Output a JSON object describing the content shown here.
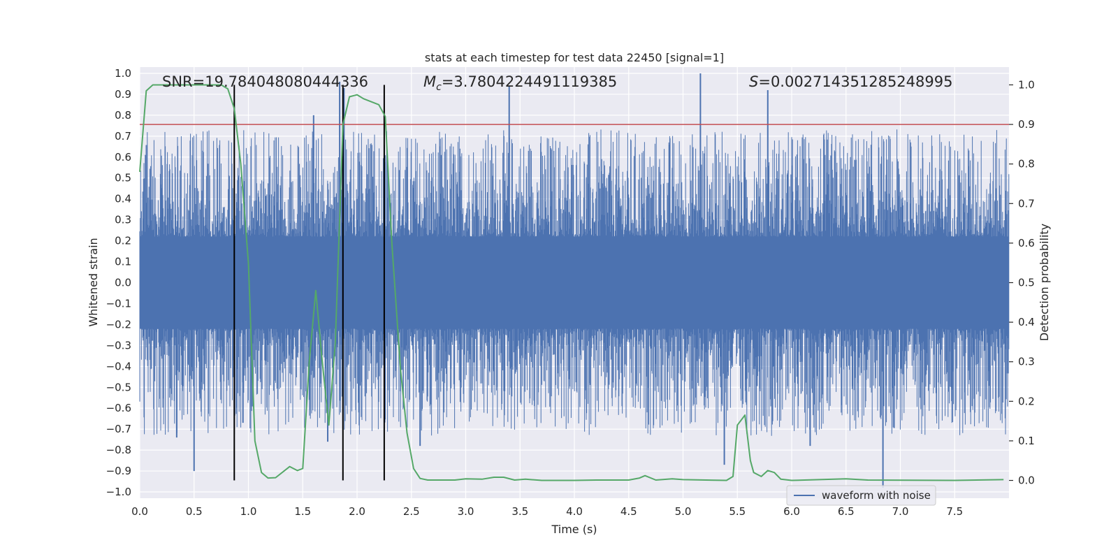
{
  "chart_data": {
    "type": "line",
    "title": "stats at each timestep for test data 22450 [signal=1]",
    "xlabel": "Time (s)",
    "ylabel_left": "Whitened strain",
    "ylabel_right": "Detection probability",
    "xlim": [
      0.0,
      8.0
    ],
    "ylim_left": [
      -1.03,
      1.03
    ],
    "ylim_right": [
      -0.045,
      1.045
    ],
    "x_ticks": [
      0.0,
      0.5,
      1.0,
      1.5,
      2.0,
      2.5,
      3.0,
      3.5,
      4.0,
      4.5,
      5.0,
      5.5,
      6.0,
      6.5,
      7.0,
      7.5
    ],
    "x_tick_labels": [
      "0.0",
      "0.5",
      "1.0",
      "1.5",
      "2.0",
      "2.5",
      "3.0",
      "3.5",
      "4.0",
      "4.5",
      "5.0",
      "5.5",
      "6.0",
      "6.5",
      "7.0",
      "7.5"
    ],
    "y_left_ticks": [
      1.0,
      0.9,
      0.8,
      0.7,
      0.6,
      0.5,
      0.4,
      0.3,
      0.2,
      0.1,
      0.0,
      -0.1,
      -0.2,
      -0.3,
      -0.4,
      -0.5,
      -0.6,
      -0.7,
      -0.8,
      -0.9,
      -1.0
    ],
    "y_left_tick_labels": [
      "1.0",
      "0.9",
      "0.8",
      "0.7",
      "0.6",
      "0.5",
      "0.4",
      "0.3",
      "0.2",
      "0.1",
      "0.0",
      "−0.1",
      "−0.2",
      "−0.3",
      "−0.4",
      "−0.5",
      "−0.6",
      "−0.7",
      "−0.8",
      "−0.9",
      "−1.0"
    ],
    "y_right_ticks": [
      1.0,
      0.9,
      0.8,
      0.7,
      0.6,
      0.5,
      0.4,
      0.3,
      0.2,
      0.1,
      0.0
    ],
    "y_right_tick_labels": [
      "1.0",
      "0.9",
      "0.8",
      "0.7",
      "0.6",
      "0.5",
      "0.4",
      "0.3",
      "0.2",
      "0.1",
      "0.0"
    ],
    "annotations": {
      "snr": "SNR=19.784048080444336",
      "mc_symbol": "M",
      "mc_subscript": "c",
      "mc_value": "=3.7804224491119385",
      "s_symbol": "S",
      "s_value": "=0.002714351285248995"
    },
    "legend": {
      "label": "waveform with noise",
      "placement": "lower-right"
    },
    "threshold": {
      "axis": "right",
      "value": 0.9
    },
    "vertical_lines": [
      0.87,
      1.87,
      2.25
    ],
    "series": [
      {
        "name": "waveform with noise",
        "axis": "left",
        "kind": "noise-strain",
        "duration": 8.0,
        "core_half_width": 0.22,
        "typical_extreme": 0.45,
        "spikes": [
          {
            "t": 0.5,
            "v": -0.9
          },
          {
            "t": 0.34,
            "v": -0.74
          },
          {
            "t": 1.6,
            "v": 0.8
          },
          {
            "t": 1.84,
            "v": 0.96
          },
          {
            "t": 1.88,
            "v": 0.93
          },
          {
            "t": 3.4,
            "v": 0.94
          },
          {
            "t": 5.16,
            "v": 1.0
          },
          {
            "t": 5.78,
            "v": 0.92
          },
          {
            "t": 6.84,
            "v": -0.98
          },
          {
            "t": 2.58,
            "v": -0.78
          },
          {
            "t": 1.73,
            "v": -0.76
          },
          {
            "t": 5.38,
            "v": -0.87
          },
          {
            "t": 6.17,
            "v": -0.78
          },
          {
            "t": 0.95,
            "v": -0.67
          }
        ]
      },
      {
        "name": "detection probability",
        "axis": "right",
        "points": [
          [
            0.0,
            0.78
          ],
          [
            0.06,
            0.985
          ],
          [
            0.12,
            1.0
          ],
          [
            0.3,
            1.0
          ],
          [
            0.6,
            1.0
          ],
          [
            0.75,
            1.0
          ],
          [
            0.81,
            0.99
          ],
          [
            0.87,
            0.94
          ],
          [
            0.93,
            0.8
          ],
          [
            1.0,
            0.55
          ],
          [
            1.06,
            0.1
          ],
          [
            1.12,
            0.02
          ],
          [
            1.18,
            0.006
          ],
          [
            1.25,
            0.007
          ],
          [
            1.38,
            0.035
          ],
          [
            1.45,
            0.025
          ],
          [
            1.5,
            0.03
          ],
          [
            1.56,
            0.3
          ],
          [
            1.62,
            0.48
          ],
          [
            1.68,
            0.3
          ],
          [
            1.74,
            0.14
          ],
          [
            1.8,
            0.35
          ],
          [
            1.87,
            0.9
          ],
          [
            1.93,
            0.97
          ],
          [
            2.0,
            0.975
          ],
          [
            2.06,
            0.965
          ],
          [
            2.2,
            0.95
          ],
          [
            2.26,
            0.92
          ],
          [
            2.32,
            0.6
          ],
          [
            2.4,
            0.28
          ],
          [
            2.46,
            0.12
          ],
          [
            2.52,
            0.03
          ],
          [
            2.58,
            0.005
          ],
          [
            2.65,
            0.001
          ],
          [
            2.9,
            0.001
          ],
          [
            3.0,
            0.004
          ],
          [
            3.15,
            0.003
          ],
          [
            3.26,
            0.008
          ],
          [
            3.35,
            0.008
          ],
          [
            3.45,
            0.001
          ],
          [
            3.55,
            0.003
          ],
          [
            3.7,
            0.0
          ],
          [
            4.0,
            0.0
          ],
          [
            4.2,
            0.001
          ],
          [
            4.5,
            0.001
          ],
          [
            4.6,
            0.006
          ],
          [
            4.65,
            0.012
          ],
          [
            4.75,
            0.001
          ],
          [
            4.9,
            0.004
          ],
          [
            5.0,
            0.002
          ],
          [
            5.4,
            0.0
          ],
          [
            5.46,
            0.01
          ],
          [
            5.5,
            0.14
          ],
          [
            5.57,
            0.165
          ],
          [
            5.62,
            0.05
          ],
          [
            5.65,
            0.02
          ],
          [
            5.72,
            0.01
          ],
          [
            5.78,
            0.025
          ],
          [
            5.84,
            0.02
          ],
          [
            5.9,
            0.003
          ],
          [
            6.0,
            0.0
          ],
          [
            6.5,
            0.004
          ],
          [
            6.7,
            0.001
          ],
          [
            7.5,
            0.0
          ],
          [
            7.95,
            0.002
          ]
        ]
      }
    ]
  },
  "colors": {
    "plot_bg": "#eaeaf2",
    "grid": "#ffffff",
    "waveform": "#4c72b0",
    "probability": "#55a868",
    "threshold": "#c44e52",
    "marker_lines": "#000000",
    "text": "#262626"
  }
}
